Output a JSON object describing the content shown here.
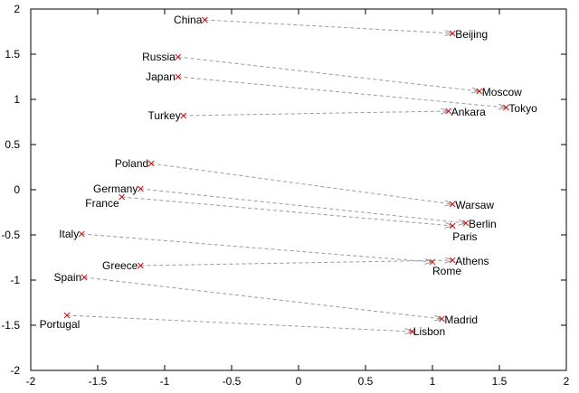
{
  "chart_data": {
    "type": "scatter",
    "title": "",
    "xlabel": "",
    "ylabel": "",
    "xlim": [
      -2,
      2
    ],
    "ylim": [
      -2,
      2
    ],
    "grid": false,
    "xticks": [
      "-2",
      "-1.5",
      "-1",
      "-0.5",
      "0",
      "0.5",
      "1",
      "1.5",
      "2"
    ],
    "yticks": [
      "2",
      "1.5",
      "1",
      "0.5",
      "0",
      "-0.5",
      "-1",
      "-1.5",
      "-2"
    ],
    "colors": {
      "marker": "#d01010",
      "arrow": "#9a9a9a"
    },
    "points": [
      {
        "label": "China",
        "x": -0.7,
        "y": 1.88
      },
      {
        "label": "Beijing",
        "x": 1.15,
        "y": 1.73
      },
      {
        "label": "Russia",
        "x": -0.9,
        "y": 1.47
      },
      {
        "label": "Moscow",
        "x": 1.35,
        "y": 1.09
      },
      {
        "label": "Japan",
        "x": -0.9,
        "y": 1.25
      },
      {
        "label": "Tokyo",
        "x": 1.55,
        "y": 0.91
      },
      {
        "label": "Turkey",
        "x": -0.86,
        "y": 0.82
      },
      {
        "label": "Ankara",
        "x": 1.12,
        "y": 0.87
      },
      {
        "label": "Poland",
        "x": -1.1,
        "y": 0.29
      },
      {
        "label": "Warsaw",
        "x": 1.15,
        "y": -0.16
      },
      {
        "label": "Germany",
        "x": -1.18,
        "y": 0.01
      },
      {
        "label": "Berlin",
        "x": 1.25,
        "y": -0.37
      },
      {
        "label": "France",
        "x": -1.32,
        "y": -0.08
      },
      {
        "label": "Paris",
        "x": 1.15,
        "y": -0.4
      },
      {
        "label": "Italy",
        "x": -1.62,
        "y": -0.49
      },
      {
        "label": "Rome",
        "x": 1.0,
        "y": -0.8
      },
      {
        "label": "Greece",
        "x": -1.18,
        "y": -0.84
      },
      {
        "label": "Athens",
        "x": 1.15,
        "y": -0.78
      },
      {
        "label": "Spain",
        "x": -1.6,
        "y": -0.97
      },
      {
        "label": "Madrid",
        "x": 1.07,
        "y": -1.43
      },
      {
        "label": "Portugal",
        "x": -1.73,
        "y": -1.39
      },
      {
        "label": "Lisbon",
        "x": 0.85,
        "y": -1.57
      }
    ],
    "arrows": [
      {
        "from": "China",
        "to": "Beijing"
      },
      {
        "from": "Russia",
        "to": "Moscow"
      },
      {
        "from": "Japan",
        "to": "Tokyo"
      },
      {
        "from": "Turkey",
        "to": "Ankara"
      },
      {
        "from": "Poland",
        "to": "Warsaw"
      },
      {
        "from": "Germany",
        "to": "Berlin"
      },
      {
        "from": "France",
        "to": "Paris"
      },
      {
        "from": "Italy",
        "to": "Rome"
      },
      {
        "from": "Greece",
        "to": "Athens"
      },
      {
        "from": "Spain",
        "to": "Madrid"
      },
      {
        "from": "Portugal",
        "to": "Lisbon"
      }
    ]
  }
}
